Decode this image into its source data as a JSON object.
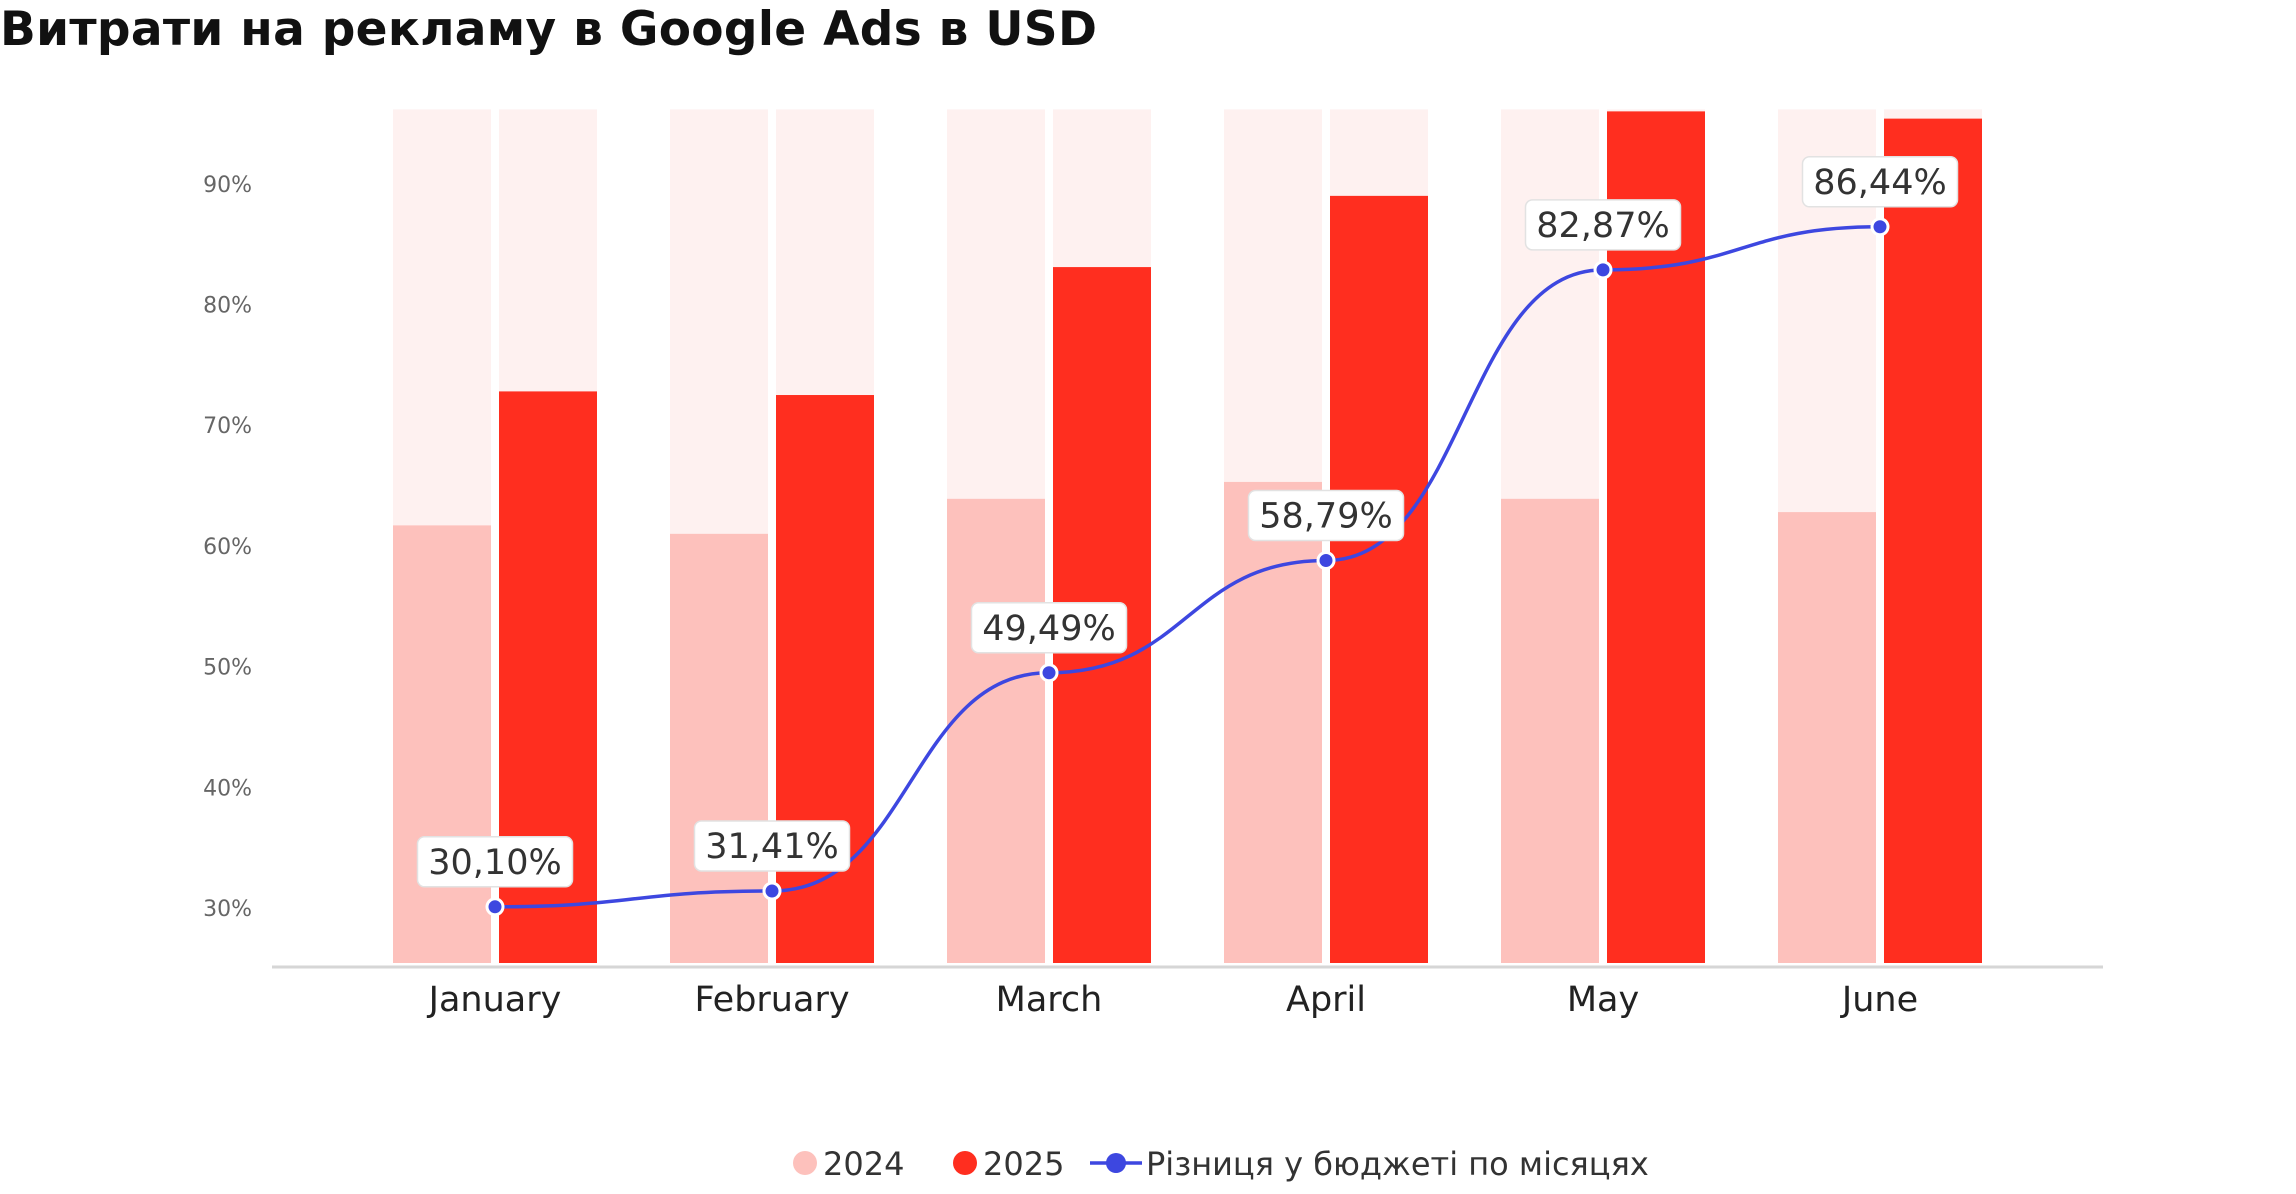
{
  "chart_data": {
    "type": "bar",
    "title": "Витрати на рекламу в Google Ads в USD",
    "categories": [
      "January",
      "February",
      "March",
      "April",
      "May",
      "June"
    ],
    "y_ticks": [
      "30%",
      "40%",
      "50%",
      "60%",
      "70%",
      "80%",
      "90%"
    ],
    "ylim": [
      25,
      96
    ],
    "grid": false,
    "legend_position": "bottom",
    "series": [
      {
        "name": "2024",
        "type": "bar",
        "color": "#FDC1BC",
        "background_color": "#FEF1F0",
        "values": [
          61.7,
          61.0,
          63.9,
          65.3,
          63.9,
          62.8
        ]
      },
      {
        "name": "2025",
        "type": "bar",
        "color": "#FF2E1F",
        "background_color": "#FEF1F0",
        "values": [
          72.8,
          72.5,
          83.1,
          89.0,
          96.0,
          95.4
        ]
      },
      {
        "name": "Різниця у бюджеті по місяцях",
        "type": "line",
        "color": "#3D47E0",
        "values": [
          30.1,
          31.41,
          49.49,
          58.79,
          82.87,
          86.44
        ],
        "labels": [
          "30,10%",
          "31,41%",
          "49,49%",
          "58,79%",
          "82,87%",
          "86,44%"
        ]
      }
    ]
  }
}
